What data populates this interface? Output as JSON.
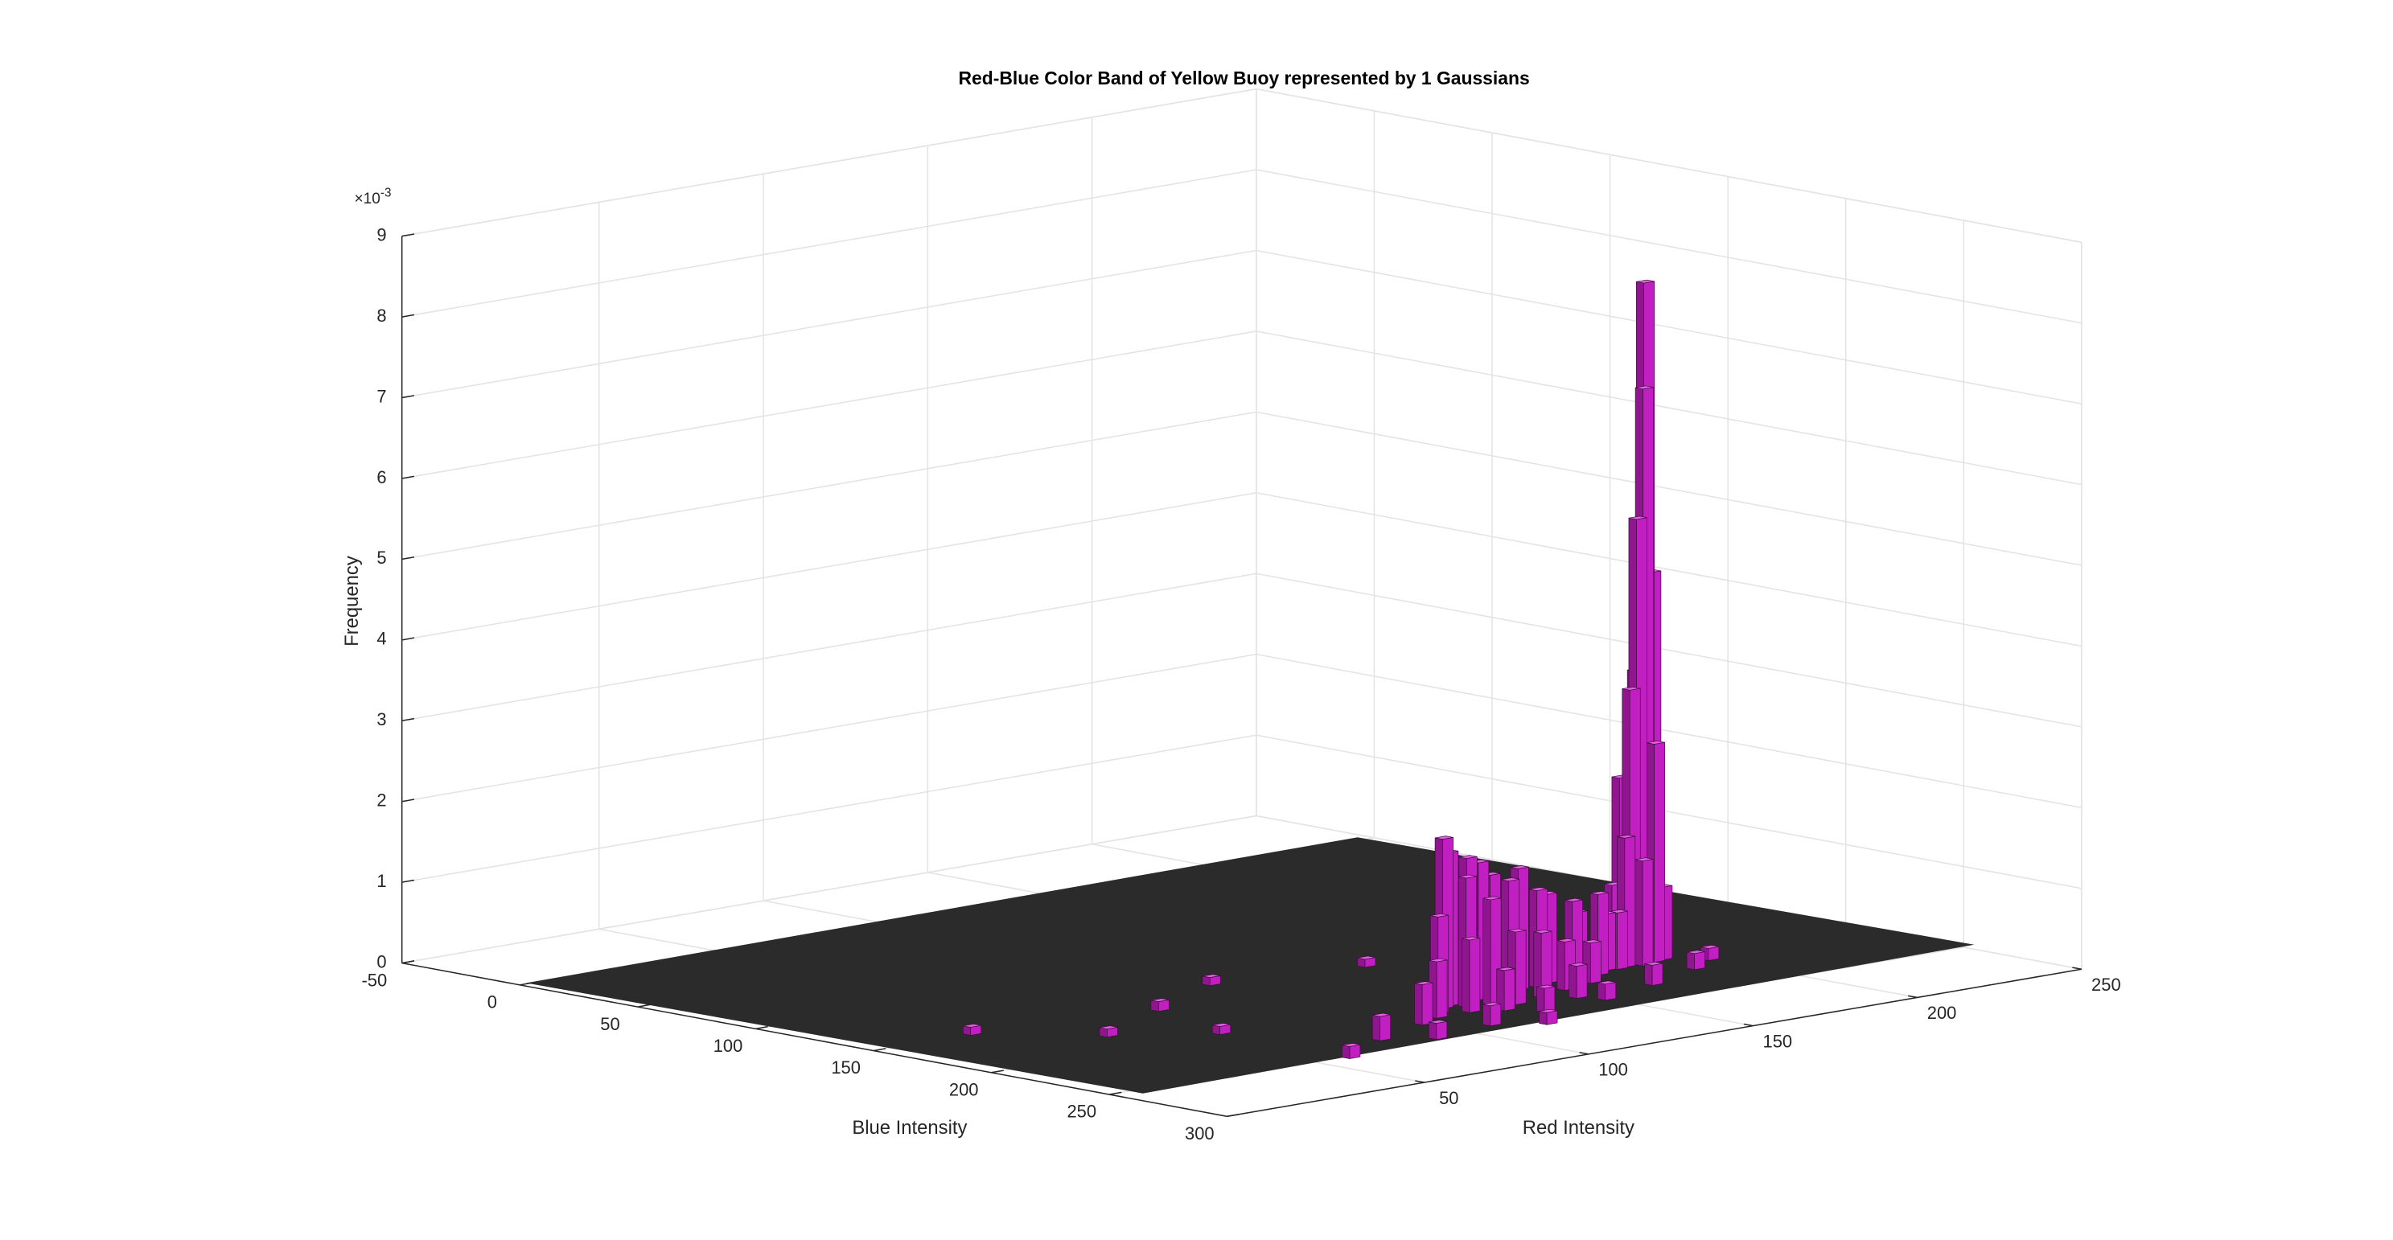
{
  "chart_data": {
    "type": "bar3",
    "title": "Red-Blue Color Band of Yellow Buoy represented by 1 Gaussians",
    "xlabel": "Red Intensity",
    "ylabel": "Blue Intensity",
    "zlabel": "Frequency",
    "z_multiplier": "×10",
    "z_exponent": "-3",
    "color": "#c21fc2",
    "grid": true,
    "xlim": [
      -10,
      250
    ],
    "ylim": [
      -50,
      300
    ],
    "zlim": [
      0,
      9
    ],
    "xticks": [
      50,
      100,
      150,
      200,
      250
    ],
    "yticks": [
      -50,
      0,
      50,
      100,
      150,
      200,
      250,
      300
    ],
    "zticks": [
      0,
      1,
      2,
      3,
      4,
      5,
      6,
      7,
      8,
      9
    ],
    "x": [
      189,
      188,
      186,
      191,
      187,
      184,
      190,
      183,
      192,
      181,
      185,
      180,
      193,
      178,
      195,
      117,
      120,
      125,
      130,
      122,
      135,
      140,
      128,
      145,
      150,
      155,
      160,
      112,
      118,
      132,
      165,
      170,
      175,
      108,
      142,
      152,
      162,
      100,
      125,
      147,
      80,
      90,
      110,
      130,
      150,
      170,
      190,
      200,
      60,
      40,
      20,
      70,
      100,
      140,
      60,
      120
    ],
    "y": [
      200,
      201,
      201,
      200,
      199,
      201,
      203,
      198,
      196,
      203,
      205,
      199,
      202,
      204,
      198,
      215,
      213,
      214,
      212,
      218,
      210,
      211,
      220,
      208,
      209,
      206,
      210,
      220,
      225,
      225,
      205,
      207,
      203,
      225,
      222,
      218,
      215,
      230,
      230,
      230,
      240,
      250,
      245,
      240,
      238,
      230,
      220,
      212,
      200,
      180,
      150,
      160,
      140,
      150,
      255,
      255
    ],
    "values": [
      8.4,
      7.1,
      5.5,
      4.8,
      3.6,
      3.4,
      2.7,
      2.3,
      1.7,
      1.6,
      1.3,
      1.0,
      0.9,
      0.7,
      0.5,
      2.1,
      1.9,
      1.8,
      1.7,
      1.6,
      1.5,
      1.4,
      1.3,
      1.5,
      1.2,
      1.1,
      1.0,
      1.2,
      0.9,
      0.9,
      0.8,
      1.0,
      0.7,
      0.7,
      0.8,
      0.6,
      0.5,
      0.5,
      0.5,
      0.4,
      0.3,
      0.2,
      0.25,
      0.3,
      0.2,
      0.25,
      0.2,
      0.15,
      0.1,
      0.1,
      0.1,
      0.12,
      0.1,
      0.1,
      0.15,
      0.15
    ]
  }
}
